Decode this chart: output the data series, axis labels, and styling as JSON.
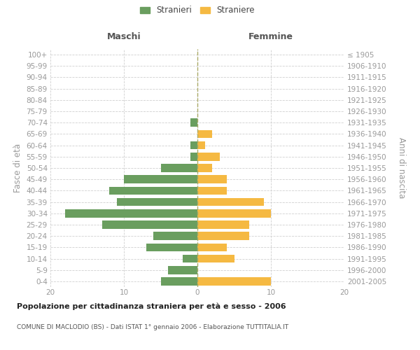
{
  "age_groups": [
    "0-4",
    "5-9",
    "10-14",
    "15-19",
    "20-24",
    "25-29",
    "30-34",
    "35-39",
    "40-44",
    "45-49",
    "50-54",
    "55-59",
    "60-64",
    "65-69",
    "70-74",
    "75-79",
    "80-84",
    "85-89",
    "90-94",
    "95-99",
    "100+"
  ],
  "birth_years": [
    "2001-2005",
    "1996-2000",
    "1991-1995",
    "1986-1990",
    "1981-1985",
    "1976-1980",
    "1971-1975",
    "1966-1970",
    "1961-1965",
    "1956-1960",
    "1951-1955",
    "1946-1950",
    "1941-1945",
    "1936-1940",
    "1931-1935",
    "1926-1930",
    "1921-1925",
    "1916-1920",
    "1911-1915",
    "1906-1910",
    "≤ 1905"
  ],
  "maschi": [
    5,
    4,
    2,
    7,
    6,
    13,
    18,
    11,
    12,
    10,
    5,
    1,
    1,
    0,
    1,
    0,
    0,
    0,
    0,
    0,
    0
  ],
  "femmine": [
    10,
    0,
    5,
    4,
    7,
    7,
    10,
    9,
    4,
    4,
    2,
    3,
    1,
    2,
    0,
    0,
    0,
    0,
    0,
    0,
    0
  ],
  "male_color": "#6a9e5f",
  "female_color": "#f5b942",
  "title1": "Popolazione per cittadinanza straniera per età e sesso - 2006",
  "title2": "COMUNE DI MACLODIO (BS) - Dati ISTAT 1° gennaio 2006 - Elaborazione TUTTITALIA.IT",
  "legend_male": "Stranieri",
  "legend_female": "Straniere",
  "header_left": "Maschi",
  "header_right": "Femmine",
  "ylabel_left": "Fasce di età",
  "ylabel_right": "Anni di nascita",
  "xlim": 20,
  "bg_color": "#ffffff",
  "grid_color": "#d0d0d0",
  "tick_color": "#999999",
  "header_color": "#555555",
  "title1_color": "#222222",
  "title2_color": "#555555"
}
